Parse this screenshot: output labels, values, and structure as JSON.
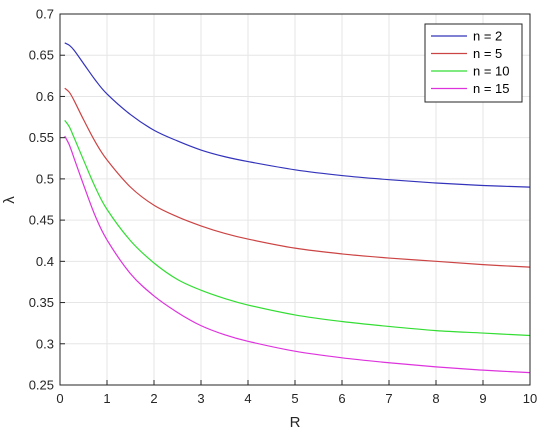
{
  "chart_data": {
    "type": "line",
    "title": "",
    "xlabel": "R",
    "ylabel": "λ",
    "xlim": [
      0,
      10
    ],
    "ylim": [
      0.25,
      0.7
    ],
    "xticks": [
      0,
      1,
      2,
      3,
      4,
      5,
      6,
      7,
      8,
      9,
      10
    ],
    "yticks": [
      0.25,
      0.3,
      0.35,
      0.4,
      0.45,
      0.5,
      0.55,
      0.6,
      0.65,
      0.7
    ],
    "xtick_labels": [
      "0",
      "1",
      "2",
      "3",
      "4",
      "5",
      "6",
      "7",
      "8",
      "9",
      "10"
    ],
    "ytick_labels": [
      "0.25",
      "0.3",
      "0.35",
      "0.4",
      "0.45",
      "0.5",
      "0.55",
      "0.6",
      "0.65",
      "0.7"
    ],
    "grid": true,
    "legend_position": "top-right",
    "x": [
      0.1,
      0.2,
      0.3,
      0.5,
      0.75,
      1,
      1.5,
      2,
      2.5,
      3,
      3.5,
      4,
      5,
      6,
      7,
      8,
      9,
      10
    ],
    "series": [
      {
        "name": "n = 2",
        "color": "#3333bb",
        "values": [
          0.665,
          0.662,
          0.656,
          0.64,
          0.62,
          0.603,
          0.578,
          0.559,
          0.546,
          0.535,
          0.527,
          0.521,
          0.511,
          0.504,
          0.499,
          0.495,
          0.492,
          0.49
        ]
      },
      {
        "name": "n = 5",
        "color": "#cc4444",
        "values": [
          0.61,
          0.605,
          0.595,
          0.572,
          0.545,
          0.523,
          0.49,
          0.468,
          0.454,
          0.443,
          0.434,
          0.427,
          0.416,
          0.409,
          0.404,
          0.4,
          0.396,
          0.393
        ]
      },
      {
        "name": "n = 10",
        "color": "#33dd33",
        "values": [
          0.571,
          0.563,
          0.55,
          0.523,
          0.49,
          0.463,
          0.425,
          0.398,
          0.378,
          0.365,
          0.355,
          0.347,
          0.335,
          0.327,
          0.321,
          0.316,
          0.313,
          0.31
        ]
      },
      {
        "name": "n = 15",
        "color": "#dd33dd",
        "values": [
          0.552,
          0.541,
          0.525,
          0.493,
          0.455,
          0.426,
          0.385,
          0.358,
          0.338,
          0.322,
          0.311,
          0.303,
          0.291,
          0.283,
          0.277,
          0.272,
          0.268,
          0.265
        ]
      }
    ]
  }
}
